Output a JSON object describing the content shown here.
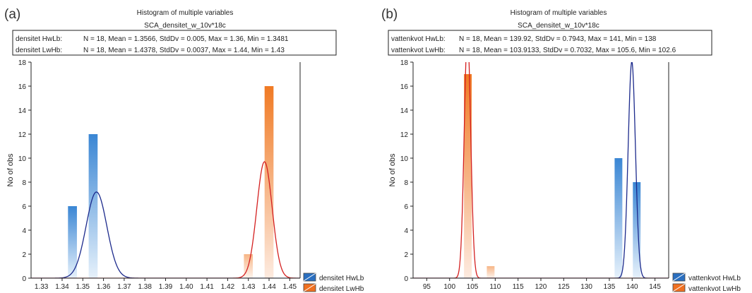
{
  "chart_data": [
    {
      "type": "bar",
      "panel_label": "(a)",
      "title": "Histogram of multiple variables",
      "subtitle": "SCA_densitet_w_10v*18c",
      "stats": [
        {
          "name": "densitet HwLb:",
          "text": "N = 18, Mean = 1.3566, StdDv = 0.005, Max = 1.36, Min = 1.3481"
        },
        {
          "name": "densitet LwHb:",
          "text": "N = 18, Mean = 1.4378, StdDv = 0.0037, Max = 1.44, Min = 1.43"
        }
      ],
      "ylabel": "No of obs",
      "xlabel": "",
      "xlim": [
        1.325,
        1.455
      ],
      "ylim": [
        0,
        18
      ],
      "bin_width": 0.005,
      "x_ticks": [
        "1.33",
        "1.34",
        "1.35",
        "1.36",
        "1.37",
        "1.38",
        "1.39",
        "1.40",
        "1.41",
        "1.42",
        "1.43",
        "1.44",
        "1.45"
      ],
      "x_tick_values": [
        1.33,
        1.34,
        1.35,
        1.36,
        1.37,
        1.38,
        1.39,
        1.4,
        1.41,
        1.42,
        1.43,
        1.44,
        1.45
      ],
      "y_ticks": [
        0,
        2,
        4,
        6,
        8,
        10,
        12,
        14,
        16,
        18
      ],
      "legend_position": "bottom-right",
      "series": [
        {
          "name": "densitet HwLb",
          "color": "#2a6fc0",
          "curve_color": "#1c2a8c",
          "bins": [
            {
              "x": 1.345,
              "count": 6
            },
            {
              "x": 1.355,
              "count": 12
            }
          ],
          "mean": 1.3566,
          "stddev": 0.005,
          "n": 18
        },
        {
          "name": "densitet LwHb",
          "color": "#f07020",
          "curve_color": "#d42020",
          "bins": [
            {
              "x": 1.43,
              "count": 2
            },
            {
              "x": 1.44,
              "count": 16
            }
          ],
          "mean": 1.4378,
          "stddev": 0.0037,
          "n": 18
        }
      ]
    },
    {
      "type": "bar",
      "panel_label": "(b)",
      "title": "Histogram of multiple variables",
      "subtitle": "SCA_densitet_w_10v*18c",
      "stats": [
        {
          "name": "vattenkvot HwLb:",
          "text": "N = 18, Mean = 139.92, StdDv = 0.7943, Max = 141, Min = 138"
        },
        {
          "name": "vattenkvot LwHb:",
          "text": "N = 18, Mean = 103.9133, StdDv = 0.7032, Max = 105.6, Min = 102.6"
        }
      ],
      "ylabel": "No of obs",
      "xlabel": "",
      "xlim": [
        92,
        148
      ],
      "ylim": [
        0,
        18
      ],
      "bin_width": 2,
      "x_ticks": [
        "95",
        "100",
        "105",
        "110",
        "115",
        "120",
        "125",
        "130",
        "135",
        "140",
        "145"
      ],
      "x_tick_values": [
        95,
        100,
        105,
        110,
        115,
        120,
        125,
        130,
        135,
        140,
        145
      ],
      "y_ticks": [
        0,
        2,
        4,
        6,
        8,
        10,
        12,
        14,
        16,
        18
      ],
      "legend_position": "bottom-right",
      "series": [
        {
          "name": "vattenkvot HwLb",
          "color": "#2a6fc0",
          "curve_color": "#1c2a8c",
          "bins": [
            {
              "x": 137,
              "count": 10
            },
            {
              "x": 141,
              "count": 8
            }
          ],
          "mean": 139.92,
          "stddev": 0.7943,
          "n": 18
        },
        {
          "name": "vattenkvot LwHb",
          "color": "#f07020",
          "curve_color": "#d42020",
          "bins": [
            {
              "x": 104,
              "count": 17
            },
            {
              "x": 109,
              "count": 1
            }
          ],
          "mean": 103.9133,
          "stddev": 0.7032,
          "n": 18
        }
      ]
    }
  ]
}
